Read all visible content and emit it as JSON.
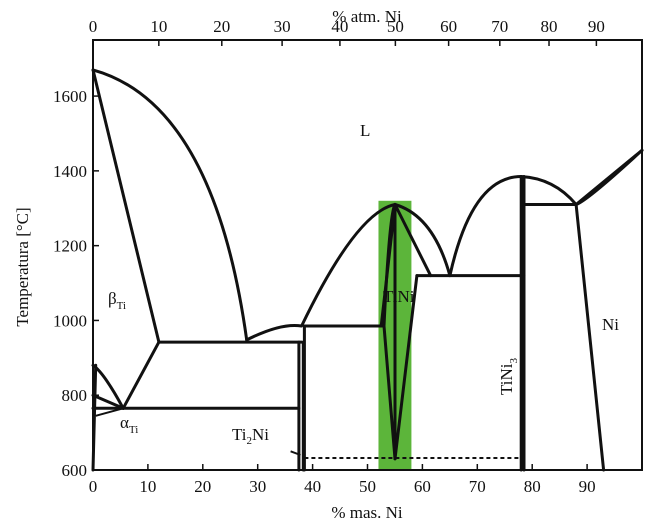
{
  "chart_data": {
    "type": "phase-diagram",
    "title": "",
    "top_axis_label": "% atm. Ni",
    "bottom_axis_label": "% mas. Ni",
    "y_axis_label": "Temperatura [°C]",
    "xlim": [
      0,
      100
    ],
    "ylim": [
      600,
      1750
    ],
    "top_axis_ticks": [
      "0",
      "10",
      "20",
      "30",
      "40",
      "50",
      "60",
      "70",
      "80",
      "90"
    ],
    "bottom_axis_ticks": [
      "0",
      "10",
      "20",
      "30",
      "40",
      "50",
      "60",
      "70",
      "80",
      "90"
    ],
    "y_axis_ticks": [
      "600",
      "800",
      "1000",
      "1200",
      "1400",
      "1600"
    ],
    "regions": {
      "liquid": "L",
      "beta_ti": {
        "main": "β",
        "sub": "Ti"
      },
      "alpha_ti": {
        "main": "α",
        "sub": "Ti"
      },
      "ti2ni": {
        "pre": "Ti",
        "sub": "2",
        "post": "Ni"
      },
      "tini": "TiNi",
      "tini3": {
        "pre": "TiNi",
        "sub": "3"
      },
      "ni": "Ni"
    },
    "highlight": {
      "color": "#5cb53a",
      "x_range_mass_pct": [
        52,
        58
      ]
    },
    "invariant_lines_c": [
      1310,
      1120,
      942,
      985,
      765,
      630
    ]
  }
}
